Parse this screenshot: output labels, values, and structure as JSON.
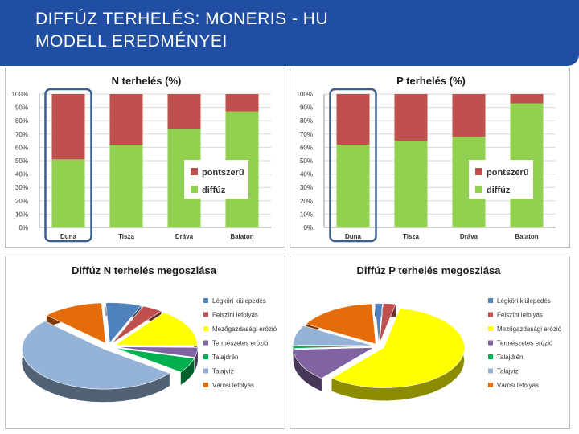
{
  "title_line1": "DIFFÚZ TERHELÉS: MONERIS - HU",
  "title_line2": "MODELL EREDMÉNYEI",
  "colors": {
    "pontszeru": "#c0504d",
    "diffuz": "#92d050",
    "highlight": "#3b5f8a"
  },
  "chart_data": [
    {
      "type": "bar",
      "stacked": true,
      "title": "N terhelés (%)",
      "categories": [
        "Duna",
        "Tisza",
        "Dráva",
        "Balaton"
      ],
      "series": [
        {
          "name": "pontszerű",
          "values": [
            49,
            38,
            26,
            13
          ],
          "color": "#c0504d"
        },
        {
          "name": "diffúz",
          "values": [
            51,
            62,
            74,
            87
          ],
          "color": "#92d050"
        }
      ],
      "ylim": [
        0,
        100
      ],
      "yticks": [
        "0%",
        "10%",
        "20%",
        "30%",
        "40%",
        "50%",
        "60%",
        "70%",
        "80%",
        "90%",
        "100%"
      ],
      "legend": "right",
      "highlight_category": "Duna"
    },
    {
      "type": "bar",
      "stacked": true,
      "title": "P terhelés (%)",
      "categories": [
        "Duna",
        "Tisza",
        "Dráva",
        "Balaton"
      ],
      "series": [
        {
          "name": "pontszerű",
          "values": [
            38,
            35,
            32,
            7
          ],
          "color": "#c0504d"
        },
        {
          "name": "diffúz",
          "values": [
            62,
            65,
            68,
            93
          ],
          "color": "#92d050"
        }
      ],
      "ylim": [
        0,
        100
      ],
      "yticks": [
        "0%",
        "10%",
        "20%",
        "30%",
        "40%",
        "50%",
        "60%",
        "70%",
        "80%",
        "90%",
        "100%"
      ],
      "legend": "right",
      "highlight_category": "Duna"
    },
    {
      "type": "pie",
      "title": "Diffúz N terhelés megoszlása",
      "legend": "right",
      "slices": [
        {
          "label": "Légköri kiülepedés",
          "value": 7,
          "color": "#4f81bd"
        },
        {
          "label": "Felszíni lefolyás",
          "value": 4,
          "color": "#c0504d"
        },
        {
          "label": "Mezőgazdasági erózió",
          "value": 15,
          "color": "#ffff00"
        },
        {
          "label": "Természetes erózió",
          "value": 4,
          "color": "#8064a2"
        },
        {
          "label": "Talajdrén",
          "value": 6,
          "color": "#00b050"
        },
        {
          "label": "Talajvíz",
          "value": 52,
          "color": "#95b3d7"
        },
        {
          "label": "Városi lefolyás",
          "value": 12,
          "color": "#e46c0a"
        }
      ]
    },
    {
      "type": "pie",
      "title": "Diffúz P terhelés megoszlása",
      "legend": "right",
      "slices": [
        {
          "label": "Légköri kiülepedés",
          "value": 1.5,
          "color": "#4f81bd"
        },
        {
          "label": "Felszíni lefolyás",
          "value": 2.5,
          "color": "#c0504d"
        },
        {
          "label": "Mezőgazdasági erózió",
          "value": 58,
          "color": "#ffff00"
        },
        {
          "label": "Természetes erózió",
          "value": 13,
          "color": "#8064a2"
        },
        {
          "label": "Talajdrén",
          "value": 1,
          "color": "#00b050"
        },
        {
          "label": "Talajvíz",
          "value": 8,
          "color": "#95b3d7"
        },
        {
          "label": "Városi lefolyás",
          "value": 16,
          "color": "#e46c0a"
        }
      ]
    }
  ]
}
